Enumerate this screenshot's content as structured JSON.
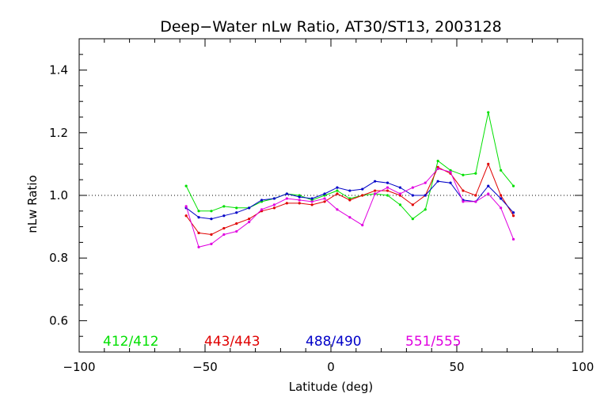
{
  "chart_data": {
    "type": "line",
    "title": "Deep−Water nLw Ratio, AT30/ST13, 2003128",
    "xlabel": "Latitude (deg)",
    "ylabel": "nLw Ratio",
    "xlim": [
      -100,
      100
    ],
    "ylim": [
      0.5,
      1.5
    ],
    "x_ticks": [
      -100,
      -50,
      0,
      50,
      100
    ],
    "x_tick_labels": [
      "−100",
      "−50",
      "0",
      "50",
      "100"
    ],
    "y_ticks": [
      0.6,
      0.8,
      1.0,
      1.2,
      1.4
    ],
    "y_tick_labels": [
      "0.6",
      "0.8",
      "1.0",
      "1.2",
      "1.4"
    ],
    "reference_line": 1.0,
    "grid": false,
    "legend_position": "bottom",
    "x": [
      -57.5,
      -52.5,
      -47.5,
      -42.5,
      -37.5,
      -32.5,
      -27.5,
      -22.5,
      -17.5,
      -12.5,
      -7.5,
      -2.5,
      2.5,
      7.5,
      12.5,
      17.5,
      22.5,
      27.5,
      32.5,
      37.5,
      42.5,
      47.5,
      52.5,
      57.5,
      62.5,
      67.5,
      72.5
    ],
    "series": [
      {
        "name": "412/412",
        "color": "#00e000",
        "values": [
          1.03,
          0.95,
          0.95,
          0.965,
          0.96,
          0.96,
          0.98,
          0.99,
          1.005,
          1.0,
          0.985,
          1.0,
          1.015,
          0.99,
          1.0,
          1.005,
          1.0,
          0.97,
          0.925,
          0.955,
          1.11,
          1.08,
          1.065,
          1.07,
          1.265,
          1.08,
          1.03
        ]
      },
      {
        "name": "443/443",
        "color": "#e00000",
        "values": [
          0.935,
          0.88,
          0.875,
          0.895,
          0.91,
          0.925,
          0.95,
          0.96,
          0.975,
          0.975,
          0.97,
          0.98,
          1.005,
          0.985,
          1.0,
          1.015,
          1.015,
          1.0,
          0.97,
          1.0,
          1.09,
          1.07,
          1.015,
          1.0,
          1.1,
          1.0,
          0.935
        ]
      },
      {
        "name": "488/490",
        "color": "#0000c8",
        "values": [
          0.96,
          0.93,
          0.925,
          0.935,
          0.945,
          0.96,
          0.985,
          0.99,
          1.005,
          0.995,
          0.99,
          1.005,
          1.025,
          1.015,
          1.02,
          1.045,
          1.04,
          1.025,
          1.0,
          1.0,
          1.045,
          1.04,
          0.985,
          0.98,
          1.03,
          0.99,
          0.945
        ]
      },
      {
        "name": "551/555",
        "color": "#e000e0",
        "values": [
          0.965,
          0.835,
          0.845,
          0.875,
          0.885,
          0.915,
          0.955,
          0.97,
          0.99,
          0.985,
          0.98,
          0.99,
          0.955,
          0.93,
          0.905,
          1.005,
          1.025,
          1.005,
          1.025,
          1.04,
          1.085,
          1.075,
          0.98,
          0.98,
          1.005,
          0.96,
          0.86
        ]
      }
    ]
  }
}
